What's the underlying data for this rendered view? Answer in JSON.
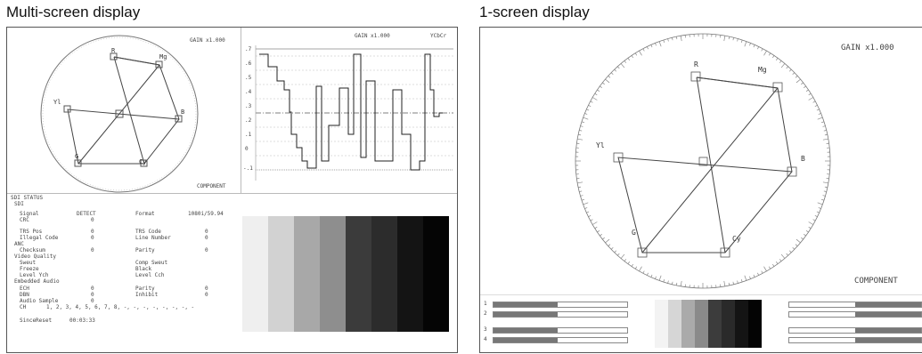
{
  "captions": {
    "multi": "Multi-screen display",
    "single": "1-screen display"
  },
  "multi": {
    "vector": {
      "gain": "GAIN x1.000",
      "mode": "COMPONENT",
      "targets": {
        "R": "R",
        "Mg": "Mg",
        "B": "B",
        "Cy": "Cy",
        "G": "G",
        "Yl": "Yl"
      }
    },
    "waveform": {
      "gain": "GAIN x1.000",
      "mode": "YCbCr",
      "scale": [
        ".7",
        ".6",
        ".5",
        ".4",
        ".3",
        ".2",
        ".1",
        "0",
        "-.1"
      ]
    },
    "status": {
      "title": "SDI STATUS",
      "sdi": "SDI",
      "signal_label": "Signal",
      "signal_value": "DETECT",
      "format_label": "Format",
      "format_value": "1080i/59.94",
      "crc_label": "CRC",
      "crc_value": "0",
      "trs_label": "TRS Pos",
      "trs_value": "0",
      "trs_code_label": "TRS Code",
      "trs_code_value": "0",
      "illegal_label": "Illegal Code",
      "illegal_value": "0",
      "line_num_label": "Line Number",
      "line_num_value": "0",
      "anc": "ANC",
      "checksum_label": "Checksum",
      "checksum_value": "0",
      "parity_label": "Parity",
      "parity_value": "0",
      "vq": "Video Quality",
      "sweut_label": "Sweut",
      "comp_label": "Comp Sweut",
      "freeze_label": "Freeze",
      "black_label": "Black",
      "level_y_label": "Level Ych",
      "level_c_label": "Level Cch",
      "emb": "Embedded Audio",
      "ech_label": "ECH",
      "ech_value": "0",
      "eparity_label": "Parity",
      "eparity_value": "0",
      "dbn_label": "DBN",
      "dbn_value": "0",
      "inhibit_label": "Inhibit",
      "inhibit_value": "0",
      "sample_label": "Audio Sample",
      "sample_value": "0",
      "ch_label": "CH",
      "ch_value": "1, 2, 3, 4, 5, 6, 7, 8, -, -, -, -, -, -, -, -",
      "since_label": "SinceReset",
      "since_value": "00:03:33"
    },
    "bars": {
      "levels": [
        "#efefef",
        "#d2d2d2",
        "#a8a8a8",
        "#8e8e8e",
        "#3b3b3b",
        "#2c2c2c",
        "#141414",
        "#050505"
      ]
    }
  },
  "single": {
    "gain": "GAIN x1.000",
    "mode": "COMPONENT",
    "targets": {
      "R": "R",
      "Mg": "Mg",
      "B": "B",
      "Cy": "Cy",
      "G": "G",
      "Yl": "Yl"
    },
    "meter_left": [
      "1",
      "2",
      "3",
      "4"
    ],
    "bars": {
      "levels": [
        "#f3f3f3",
        "#d6d6d6",
        "#aaaaaa",
        "#8a8a8a",
        "#3c3c3c",
        "#2a2a2a",
        "#141414",
        "#040404"
      ]
    }
  }
}
